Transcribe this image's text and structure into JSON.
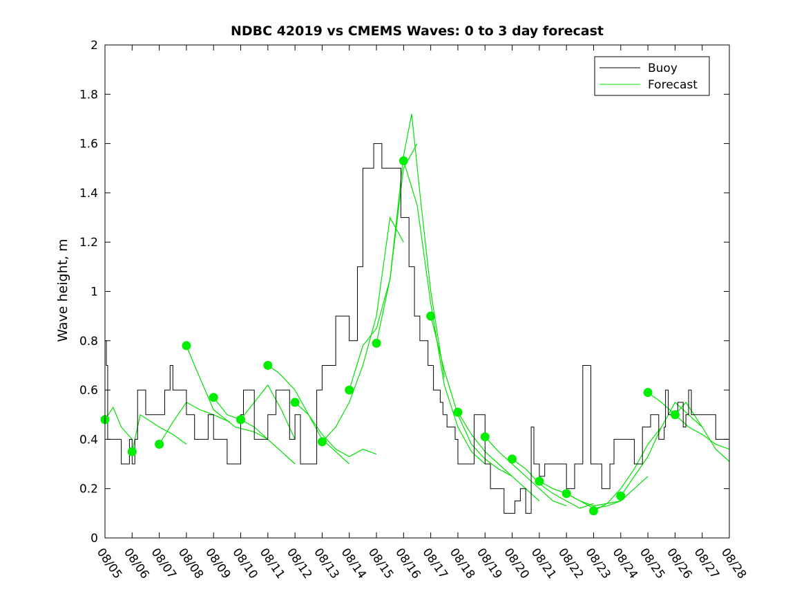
{
  "chart_data": {
    "type": "line",
    "title": "NDBC 42019 vs CMEMS Waves: 0 to 3 day forecast",
    "xlabel": "",
    "ylabel": "Wave height, m",
    "xlim": [
      0,
      23
    ],
    "ylim": [
      0,
      2
    ],
    "x_tick_labels": [
      "08/05",
      "08/06",
      "08/07",
      "08/08",
      "08/09",
      "08/10",
      "08/11",
      "08/12",
      "08/13",
      "08/14",
      "08/15",
      "08/16",
      "08/17",
      "08/18",
      "08/19",
      "08/20",
      "08/21",
      "08/22",
      "08/23",
      "08/24",
      "08/25",
      "08/26",
      "08/27",
      "08/28"
    ],
    "y_ticks": [
      0,
      0.2,
      0.4,
      0.6,
      0.8,
      1,
      1.2,
      1.4,
      1.6,
      1.8,
      2
    ],
    "y_tick_labels": [
      "0",
      "0.2",
      "0.4",
      "0.6",
      "0.8",
      "1",
      "1.2",
      "1.4",
      "1.6",
      "1.8",
      "2"
    ],
    "grid": false,
    "legend_position": "top-right",
    "colors": {
      "buoy": "#000000",
      "forecast": "#00e000",
      "marker": "#00ee00"
    },
    "series": [
      {
        "name": "Buoy",
        "style": "step",
        "x": [
          0,
          0.05,
          0.1,
          0.6,
          0.9,
          1.0,
          1.1,
          1.2,
          1.5,
          2.1,
          2.2,
          2.4,
          2.5,
          3.0,
          3.3,
          3.8,
          4.0,
          4.5,
          5.0,
          5.1,
          5.5,
          6.0,
          6.3,
          6.8,
          7.0,
          7.2,
          7.8,
          8.0,
          8.5,
          9.0,
          9.3,
          9.5,
          9.9,
          10.2,
          10.9,
          11.2,
          11.4,
          11.6,
          11.9,
          12.1,
          12.35,
          12.45,
          12.6,
          12.9,
          13.0,
          13.3,
          13.6,
          14.0,
          14.2,
          14.5,
          14.7,
          15.1,
          15.3,
          15.5,
          15.7,
          15.8,
          16.0,
          16.2,
          16.5,
          17.0,
          17.3,
          17.6,
          17.9,
          18.3,
          18.6,
          18.75,
          18.9,
          19.4,
          19.5,
          19.8,
          20.1,
          20.4,
          20.6,
          20.65,
          20.75,
          21.1,
          21.3,
          21.4,
          21.5,
          21.6,
          22.0,
          22.5,
          23.0
        ],
        "values": [
          0.8,
          0.7,
          0.4,
          0.3,
          0.4,
          0.3,
          0.4,
          0.6,
          0.5,
          0.5,
          0.6,
          0.7,
          0.6,
          0.5,
          0.4,
          0.5,
          0.4,
          0.3,
          0.5,
          0.6,
          0.4,
          0.5,
          0.6,
          0.4,
          0.5,
          0.3,
          0.6,
          0.7,
          0.9,
          0.8,
          1.1,
          1.5,
          1.6,
          1.5,
          1.3,
          1.1,
          0.9,
          0.8,
          0.7,
          0.6,
          0.55,
          0.5,
          0.45,
          0.4,
          0.3,
          0.3,
          0.5,
          0.3,
          0.2,
          0.2,
          0.1,
          0.15,
          0.2,
          0.1,
          0.45,
          0.3,
          0.25,
          0.3,
          0.3,
          0.2,
          0.3,
          0.7,
          0.3,
          0.2,
          0.3,
          0.4,
          0.4,
          0.4,
          0.3,
          0.45,
          0.5,
          0.4,
          0.45,
          0.6,
          0.5,
          0.55,
          0.45,
          0.5,
          0.6,
          0.5,
          0.5,
          0.4,
          0.4
        ]
      },
      {
        "name": "Forecast",
        "style": "line",
        "runs": [
          {
            "x": [
              0,
              0.3,
              0.6,
              1.0
            ],
            "values": [
              0.48,
              0.53,
              0.45,
              0.4
            ]
          },
          {
            "x": [
              1,
              1.3,
              2.0,
              2.5,
              3.0
            ],
            "values": [
              0.35,
              0.5,
              0.45,
              0.42,
              0.38
            ]
          },
          {
            "x": [
              2,
              2.5,
              3.0,
              3.5,
              4.0,
              4.6
            ],
            "values": [
              0.38,
              0.47,
              0.55,
              0.52,
              0.5,
              0.47
            ]
          },
          {
            "x": [
              3,
              3.3,
              4.0,
              4.8,
              5.5,
              6.0
            ],
            "values": [
              0.78,
              0.7,
              0.52,
              0.45,
              0.43,
              0.4
            ]
          },
          {
            "x": [
              4,
              4.5,
              5.0,
              5.5,
              6.0,
              6.5,
              7.0
            ],
            "values": [
              0.57,
              0.5,
              0.48,
              0.45,
              0.4,
              0.35,
              0.3
            ]
          },
          {
            "x": [
              5,
              5.5,
              6.0,
              6.5,
              7.0
            ],
            "values": [
              0.48,
              0.55,
              0.62,
              0.52,
              0.4
            ]
          },
          {
            "x": [
              6,
              6.4,
              7.0,
              7.5,
              8.0,
              8.5,
              9.0
            ],
            "values": [
              0.7,
              0.67,
              0.6,
              0.5,
              0.4,
              0.35,
              0.3
            ]
          },
          {
            "x": [
              7,
              7.5,
              8.0,
              8.5,
              9.0,
              9.5,
              10.0
            ],
            "values": [
              0.55,
              0.5,
              0.42,
              0.36,
              0.33,
              0.36,
              0.34
            ]
          },
          {
            "x": [
              8,
              8.5,
              9.0,
              9.5,
              10.0,
              10.5,
              11.0
            ],
            "values": [
              0.39,
              0.45,
              0.55,
              0.7,
              0.9,
              1.3,
              1.2
            ]
          },
          {
            "x": [
              9,
              9.5,
              10.0,
              10.5,
              11.0,
              11.5
            ],
            "values": [
              0.6,
              0.78,
              0.85,
              1.05,
              1.5,
              1.6
            ]
          },
          {
            "x": [
              10,
              10.5,
              11.0,
              11.3,
              11.6,
              12.0,
              12.5
            ],
            "values": [
              0.79,
              1.05,
              1.55,
              1.72,
              1.4,
              1.0,
              0.65
            ]
          },
          {
            "x": [
              11,
              11.5,
              12.0,
              12.5,
              13.0,
              13.5,
              14.0
            ],
            "values": [
              1.53,
              1.35,
              0.95,
              0.62,
              0.45,
              0.35,
              0.3
            ]
          },
          {
            "x": [
              12,
              12.5,
              13.0,
              13.5,
              14.0,
              14.5,
              15.0
            ],
            "values": [
              0.9,
              0.68,
              0.5,
              0.38,
              0.32,
              0.28,
              0.25
            ]
          },
          {
            "x": [
              13,
              13.5,
              14.0,
              14.5,
              15.0,
              15.5,
              16.0
            ],
            "values": [
              0.51,
              0.42,
              0.35,
              0.3,
              0.25,
              0.2,
              0.15
            ]
          },
          {
            "x": [
              14,
              14.5,
              15.0,
              15.5,
              16.0,
              16.5,
              17.0
            ],
            "values": [
              0.41,
              0.35,
              0.3,
              0.25,
              0.2,
              0.15,
              0.13
            ]
          },
          {
            "x": [
              15,
              15.5,
              16.0,
              16.5,
              17.0,
              17.5,
              18.0
            ],
            "values": [
              0.32,
              0.28,
              0.22,
              0.18,
              0.15,
              0.12,
              0.14
            ]
          },
          {
            "x": [
              16,
              16.5,
              17.0,
              17.5,
              18.0,
              18.5,
              19.0
            ],
            "values": [
              0.23,
              0.2,
              0.18,
              0.15,
              0.13,
              0.14,
              0.15
            ]
          },
          {
            "x": [
              17,
              17.5,
              18.0,
              18.5,
              19.0,
              19.5,
              20.0
            ],
            "values": [
              0.18,
              0.15,
              0.12,
              0.13,
              0.15,
              0.2,
              0.25
            ]
          },
          {
            "x": [
              18,
              18.5,
              19.0,
              19.5,
              20.0,
              20.5
            ],
            "values": [
              0.11,
              0.14,
              0.2,
              0.28,
              0.38,
              0.45
            ]
          },
          {
            "x": [
              19,
              19.5,
              20.0,
              20.5,
              21.0,
              21.5,
              22.0
            ],
            "values": [
              0.17,
              0.25,
              0.33,
              0.45,
              0.55,
              0.5,
              0.45
            ]
          },
          {
            "x": [
              20,
              20.5,
              21.0,
              21.5,
              22.0,
              22.5,
              23.0
            ],
            "values": [
              0.59,
              0.55,
              0.5,
              0.45,
              0.42,
              0.38,
              0.36
            ]
          },
          {
            "x": [
              21,
              21.4,
              22.0,
              22.5,
              23.0
            ],
            "values": [
              0.5,
              0.55,
              0.45,
              0.36,
              0.31
            ]
          }
        ],
        "markers": {
          "x": [
            0,
            1,
            2,
            3,
            4,
            5,
            6,
            7,
            8,
            9,
            10,
            11,
            12,
            13,
            14,
            15,
            16,
            17,
            18,
            19,
            20,
            21
          ],
          "values": [
            0.48,
            0.35,
            0.38,
            0.78,
            0.57,
            0.48,
            0.7,
            0.55,
            0.39,
            0.6,
            0.79,
            1.53,
            0.9,
            0.51,
            0.41,
            0.32,
            0.23,
            0.18,
            0.11,
            0.17,
            0.59,
            0.5
          ]
        }
      }
    ]
  }
}
